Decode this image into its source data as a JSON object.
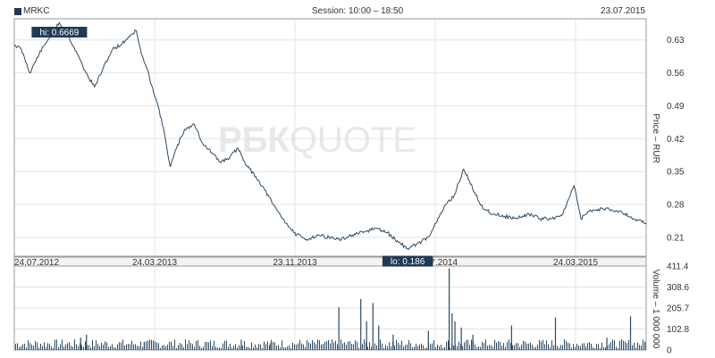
{
  "header": {
    "ticker": "MRKC",
    "session": "Session: 10:00 – 18:50",
    "date": "23.07.2015"
  },
  "watermark": {
    "bold": "РБК",
    "light": "QUOTE"
  },
  "colors": {
    "line": "#2d4a63",
    "volume": "#2d4a63",
    "badge": "#1f3a55",
    "grid": "#e4e4e4",
    "frame": "#999999",
    "watermark": "#e8e8e8"
  },
  "chart_data": [
    {
      "type": "line",
      "ylabel": "Price – RUR",
      "ylim": [
        0.17,
        0.675
      ],
      "y_ticks": [
        0.21,
        0.28,
        0.35,
        0.42,
        0.49,
        0.56,
        0.63
      ],
      "x_ticks": [
        "24.07.2012",
        "24.03.2013",
        "23.11.2013",
        "24.07.2014",
        "24.03.2015"
      ],
      "x_range": [
        "2012-07-24",
        "2015-07-23"
      ],
      "annotations": [
        {
          "label": "hi: 0.6669",
          "date": "2012-10-10",
          "value": 0.6669
        },
        {
          "label": "lo: 0.186",
          "date": "2014-06-05",
          "value": 0.186
        }
      ],
      "series": [
        {
          "x": [
            "2012-07-24",
            "2012-08-05",
            "2012-08-20",
            "2012-09-05",
            "2012-09-20",
            "2012-10-10",
            "2012-10-25",
            "2012-11-10",
            "2012-11-25",
            "2012-12-10",
            "2012-12-25",
            "2013-01-10",
            "2013-01-25",
            "2013-02-10",
            "2013-02-20",
            "2013-03-01",
            "2013-03-10",
            "2013-03-20",
            "2013-04-01",
            "2013-04-10",
            "2013-04-20",
            "2013-05-01",
            "2013-05-15",
            "2013-06-01",
            "2013-06-15",
            "2013-07-01",
            "2013-07-15",
            "2013-08-01",
            "2013-08-15",
            "2013-09-01",
            "2013-09-15",
            "2013-10-01",
            "2013-10-15",
            "2013-11-01",
            "2013-11-20",
            "2013-12-10",
            "2014-01-01",
            "2014-01-20",
            "2014-02-10",
            "2014-03-01",
            "2014-03-20",
            "2014-04-10",
            "2014-05-01",
            "2014-05-20",
            "2014-06-05",
            "2014-06-20",
            "2014-07-10",
            "2014-07-24",
            "2014-08-10",
            "2014-08-25",
            "2014-09-10",
            "2014-09-20",
            "2014-10-01",
            "2014-10-15",
            "2014-11-01",
            "2014-11-20",
            "2014-12-10",
            "2015-01-01",
            "2015-01-20",
            "2015-02-10",
            "2015-03-01",
            "2015-03-10",
            "2015-03-20",
            "2015-04-01",
            "2015-04-15",
            "2015-05-01",
            "2015-05-20",
            "2015-06-10",
            "2015-07-01",
            "2015-07-23"
          ],
          "values": [
            0.62,
            0.61,
            0.56,
            0.6,
            0.63,
            0.6669,
            0.64,
            0.6,
            0.56,
            0.53,
            0.57,
            0.61,
            0.62,
            0.64,
            0.65,
            0.6,
            0.57,
            0.53,
            0.48,
            0.43,
            0.36,
            0.4,
            0.44,
            0.45,
            0.41,
            0.39,
            0.37,
            0.38,
            0.4,
            0.36,
            0.34,
            0.31,
            0.28,
            0.25,
            0.22,
            0.205,
            0.215,
            0.21,
            0.205,
            0.215,
            0.22,
            0.23,
            0.22,
            0.2,
            0.186,
            0.195,
            0.21,
            0.24,
            0.28,
            0.3,
            0.355,
            0.33,
            0.3,
            0.27,
            0.26,
            0.255,
            0.25,
            0.26,
            0.25,
            0.25,
            0.26,
            0.29,
            0.32,
            0.25,
            0.265,
            0.27,
            0.27,
            0.265,
            0.25,
            0.24
          ]
        }
      ]
    },
    {
      "type": "bar",
      "ylabel": "Volume – 1 000 000",
      "ylim": [
        0,
        411.4
      ],
      "y_ticks": [
        "0",
        "102.8",
        "205.7",
        "308.6",
        "411.4"
      ],
      "series": [
        {
          "x": [
            "2012-11-15",
            "2012-11-25",
            "2013-03-05",
            "2013-08-20",
            "2013-10-10",
            "2014-02-05",
            "2014-03-15",
            "2014-03-25",
            "2014-04-05",
            "2014-04-15",
            "2014-05-10",
            "2014-07-10",
            "2014-08-15",
            "2014-08-20",
            "2014-08-25",
            "2014-09-05",
            "2014-09-25",
            "2014-12-01",
            "2015-02-15",
            "2015-05-15",
            "2015-06-25",
            "2015-07-20"
          ],
          "values": [
            60,
            75,
            40,
            50,
            35,
            210,
            250,
            140,
            230,
            120,
            75,
            95,
            400,
            180,
            140,
            110,
            75,
            120,
            160,
            60,
            165,
            40
          ]
        }
      ]
    }
  ]
}
